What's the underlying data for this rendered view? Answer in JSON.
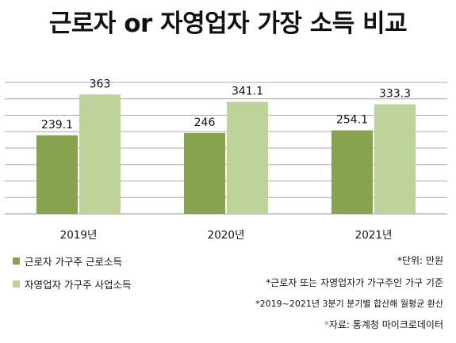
{
  "title": "근로자 or 자영업자 가장 소득 비교",
  "chart_data": {
    "type": "bar",
    "categories": [
      "2019년",
      "2020년",
      "2021년"
    ],
    "series": [
      {
        "name": "근로자 가구주 근로소득",
        "color": "#86a34e",
        "values": [
          239.1,
          246,
          254.1
        ],
        "labels": [
          "239.1",
          "246",
          "254.1"
        ]
      },
      {
        "name": "자영업자 가구주 사업소득",
        "color": "#bed39a",
        "values": [
          363,
          341.1,
          333.3
        ],
        "labels": [
          "363",
          "341.1",
          "333.3"
        ]
      }
    ],
    "ylim": [
      0,
      400
    ],
    "grid": true,
    "legend_position": "bottom-left"
  },
  "notes": {
    "unit": "*단위: 만원",
    "definition": "*근로자 또는 자영업자가 가구주인 가구 기준",
    "period": "*2019~2021년 3분기 분기별 합산해 월평균 환산",
    "source_star": "*",
    "source": "자료: 통계청 마이크로데이터"
  }
}
